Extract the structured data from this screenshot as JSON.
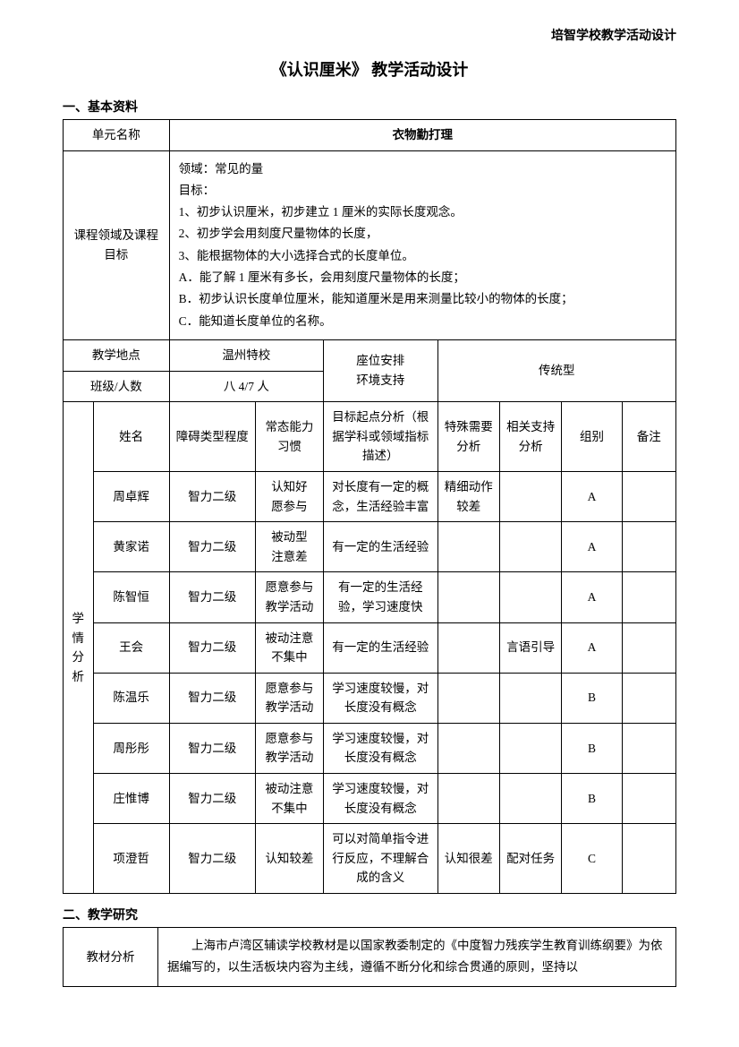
{
  "header_right": "培智学校教学活动设计",
  "title": "《认识厘米》  教学活动设计",
  "section1_heading": "一、基本资料",
  "labels": {
    "unit_name": "单元名称",
    "course_goals": "课程领域及课程目标",
    "location": "教学地点",
    "class_size": "班级/人数",
    "seat_env": "座位安排\n环境支持",
    "analysis": "学\n情\n分\n析",
    "name": "姓名",
    "disability": "障碍类型程度",
    "habit": "常态能力习惯",
    "start": "目标起点分析（根据学科或领域指标描述）",
    "special": "特殊需要分析",
    "support": "相关支持分析",
    "group": "组别",
    "note": "备注",
    "material": "教材分析"
  },
  "unit_name_value": "衣物勤打理",
  "goals_text": "领域：常见的量\n目标：\n1、初步认识厘米，初步建立 1 厘米的实际长度观念。\n2、初步学会用刻度尺量物体的长度，\n3、能根据物体的大小选择合式的长度单位。\nA．能了解 1 厘米有多长，会用刻度尺量物体的长度；\nB．初步认识长度单位厘米，能知道厘米是用来测量比较小的物体的长度；\nC．能知道长度单位的名称。",
  "location_value": "温州特校",
  "class_size_value": "八 4/7 人",
  "seat_env_value": "传统型",
  "students": [
    {
      "name": "周卓辉",
      "disability": "智力二级",
      "habit": "认知好\n愿参与",
      "start": "对长度有一定的概念，生活经验丰富",
      "special": "精细动作较差",
      "support": "",
      "group": "A",
      "note": ""
    },
    {
      "name": "黄家诺",
      "disability": "智力二级",
      "habit": "被动型\n注意差",
      "start": "有一定的生活经验",
      "special": "",
      "support": "",
      "group": "A",
      "note": ""
    },
    {
      "name": "陈智恒",
      "disability": "智力二级",
      "habit": "愿意参与教学活动",
      "start": "有一定的生活经验，学习速度快",
      "special": "",
      "support": "",
      "group": "A",
      "note": ""
    },
    {
      "name": "王会",
      "disability": "智力二级",
      "habit": "被动注意不集中",
      "start": "有一定的生活经验",
      "special": "",
      "support": "言语引导",
      "group": "A",
      "note": ""
    },
    {
      "name": "陈温乐",
      "disability": "智力二级",
      "habit": "愿意参与教学活动",
      "start": "学习速度较慢，对长度没有概念",
      "special": "",
      "support": "",
      "group": "B",
      "note": ""
    },
    {
      "name": "周彤彤",
      "disability": "智力二级",
      "habit": "愿意参与教学活动",
      "start": "学习速度较慢，对长度没有概念",
      "special": "",
      "support": "",
      "group": "B",
      "note": ""
    },
    {
      "name": "庄惟博",
      "disability": "智力二级",
      "habit": "被动注意不集中",
      "start": "学习速度较慢，对长度没有概念",
      "special": "",
      "support": "",
      "group": "B",
      "note": ""
    },
    {
      "name": "项澄哲",
      "disability": "智力二级",
      "habit": "认知较差",
      "start": "可以对简单指令进行反应，不理解合成的含义",
      "special": "认知很差",
      "support": "配对任务",
      "group": "C",
      "note": ""
    }
  ],
  "section2_heading": "二、教学研究",
  "material_text": "上海市卢湾区辅读学校教材是以国家教委制定的《中度智力残疾学生教育训练纲要》为依据编写的，以生活板块内容为主线，遵循不断分化和综合贯通的原则，坚持以"
}
